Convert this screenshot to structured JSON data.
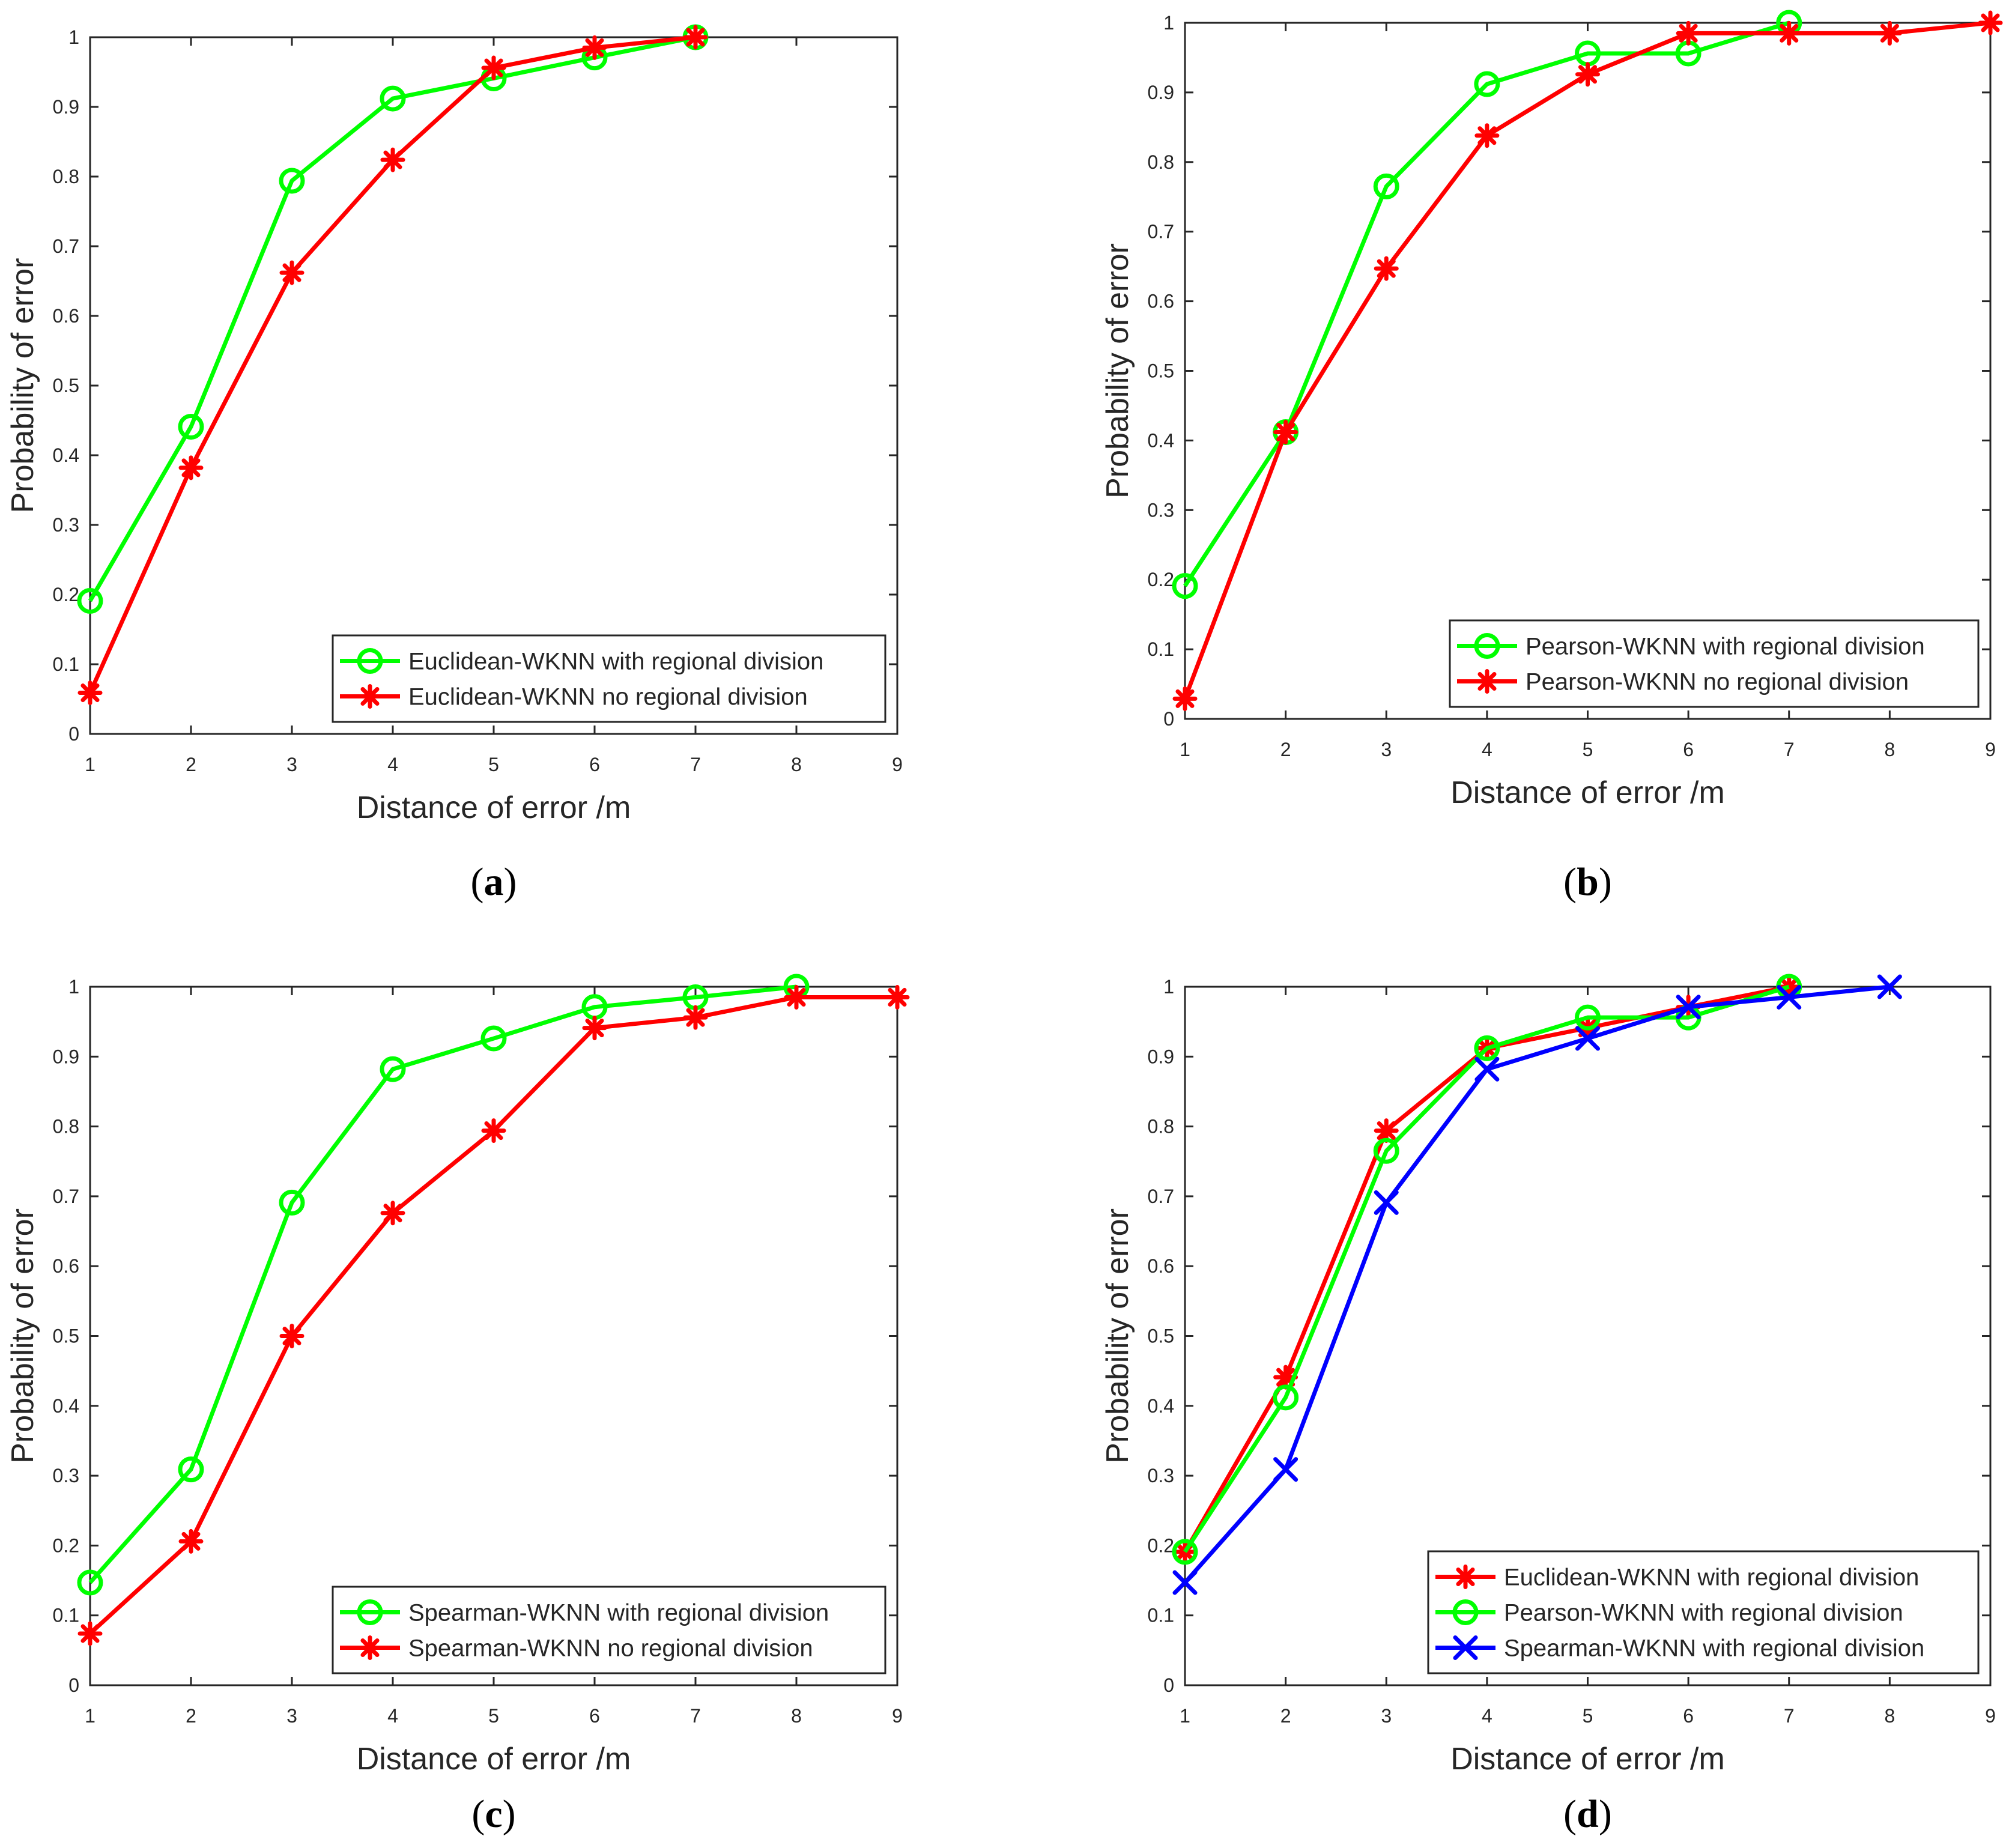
{
  "figure": {
    "captions": [
      {
        "open": "(",
        "letter": "a",
        "close": ")"
      },
      {
        "open": "(",
        "letter": "b",
        "close": ")"
      },
      {
        "open": "(",
        "letter": "c",
        "close": ")"
      },
      {
        "open": "(",
        "letter": "d",
        "close": ")"
      }
    ]
  },
  "chart_data": [
    {
      "type": "line",
      "xlabel": "Distance of error /m",
      "ylabel": "Probability of error",
      "xlim": [
        1,
        9
      ],
      "ylim": [
        0,
        1
      ],
      "xticks": [
        "1",
        "2",
        "3",
        "4",
        "5",
        "6",
        "7",
        "8",
        "9"
      ],
      "yticks": [
        "0",
        "0.1",
        "0.2",
        "0.3",
        "0.4",
        "0.5",
        "0.6",
        "0.7",
        "0.8",
        "0.9",
        "1"
      ],
      "legend_position": "bottom-right",
      "series": [
        {
          "name": "Euclidean-WKNN with regional division",
          "color": "#00ff00",
          "marker": "circle",
          "x": [
            1,
            2,
            3,
            4,
            5,
            6,
            7
          ],
          "values": [
            0.191,
            0.441,
            0.794,
            0.912,
            0.941,
            0.971,
            1.0
          ]
        },
        {
          "name": "Euclidean-WKNN no regional division",
          "color": "#ff0000",
          "marker": "asterisk",
          "x": [
            1,
            2,
            3,
            4,
            5,
            6,
            7
          ],
          "values": [
            0.059,
            0.382,
            0.662,
            0.824,
            0.956,
            0.985,
            1.0
          ]
        }
      ]
    },
    {
      "type": "line",
      "xlabel": "Distance of error /m",
      "ylabel": "Probability of error",
      "xlim": [
        1,
        9
      ],
      "ylim": [
        0,
        1
      ],
      "xticks": [
        "1",
        "2",
        "3",
        "4",
        "5",
        "6",
        "7",
        "8",
        "9"
      ],
      "yticks": [
        "0",
        "0.1",
        "0.2",
        "0.3",
        "0.4",
        "0.5",
        "0.6",
        "0.7",
        "0.8",
        "0.9",
        "1"
      ],
      "legend_position": "bottom-right",
      "series": [
        {
          "name": "Pearson-WKNN with regional division",
          "color": "#00ff00",
          "marker": "circle",
          "x": [
            1,
            2,
            3,
            4,
            5,
            6,
            7
          ],
          "values": [
            0.191,
            0.412,
            0.765,
            0.912,
            0.956,
            0.956,
            1.0
          ]
        },
        {
          "name": "Pearson-WKNN no regional division",
          "color": "#ff0000",
          "marker": "asterisk",
          "x": [
            1,
            2,
            3,
            4,
            5,
            6,
            7,
            8,
            9
          ],
          "values": [
            0.029,
            0.412,
            0.647,
            0.838,
            0.926,
            0.985,
            0.985,
            0.985,
            1.0
          ]
        }
      ]
    },
    {
      "type": "line",
      "xlabel": "Distance of error /m",
      "ylabel": "Probability of error",
      "xlim": [
        1,
        9
      ],
      "ylim": [
        0,
        1
      ],
      "xticks": [
        "1",
        "2",
        "3",
        "4",
        "5",
        "6",
        "7",
        "8",
        "9"
      ],
      "yticks": [
        "0",
        "0.1",
        "0.2",
        "0.3",
        "0.4",
        "0.5",
        "0.6",
        "0.7",
        "0.8",
        "0.9",
        "1"
      ],
      "legend_position": "bottom-right",
      "series": [
        {
          "name": "Spearman-WKNN with regional division",
          "color": "#00ff00",
          "marker": "circle",
          "x": [
            1,
            2,
            3,
            4,
            5,
            6,
            7,
            8
          ],
          "values": [
            0.147,
            0.309,
            0.691,
            0.882,
            0.926,
            0.971,
            0.985,
            1.0
          ]
        },
        {
          "name": "Spearman-WKNN no regional division",
          "color": "#ff0000",
          "marker": "asterisk",
          "x": [
            1,
            2,
            3,
            4,
            5,
            6,
            7,
            8,
            9
          ],
          "values": [
            0.074,
            0.206,
            0.5,
            0.676,
            0.794,
            0.941,
            0.956,
            0.985,
            0.985
          ]
        }
      ]
    },
    {
      "type": "line",
      "xlabel": "Distance of error /m",
      "ylabel": "Probability of error",
      "xlim": [
        1,
        9
      ],
      "ylim": [
        0,
        1
      ],
      "xticks": [
        "1",
        "2",
        "3",
        "4",
        "5",
        "6",
        "7",
        "8",
        "9"
      ],
      "yticks": [
        "0",
        "0.1",
        "0.2",
        "0.3",
        "0.4",
        "0.5",
        "0.6",
        "0.7",
        "0.8",
        "0.9",
        "1"
      ],
      "legend_position": "bottom-right",
      "series": [
        {
          "name": "Euclidean-WKNN with regional division",
          "color": "#ff0000",
          "marker": "asterisk",
          "x": [
            1,
            2,
            3,
            4,
            5,
            6,
            7
          ],
          "values": [
            0.191,
            0.441,
            0.794,
            0.912,
            0.941,
            0.971,
            1.0
          ]
        },
        {
          "name": "Pearson-WKNN with regional division",
          "color": "#00ff00",
          "marker": "circle",
          "x": [
            1,
            2,
            3,
            4,
            5,
            6,
            7
          ],
          "values": [
            0.191,
            0.412,
            0.765,
            0.912,
            0.956,
            0.956,
            1.0
          ]
        },
        {
          "name": "Spearman-WKNN with regional division",
          "color": "#0000ff",
          "marker": "x",
          "x": [
            1,
            2,
            3,
            4,
            5,
            6,
            7,
            8
          ],
          "values": [
            0.147,
            0.309,
            0.691,
            0.882,
            0.926,
            0.971,
            0.985,
            1.0
          ]
        }
      ]
    }
  ]
}
